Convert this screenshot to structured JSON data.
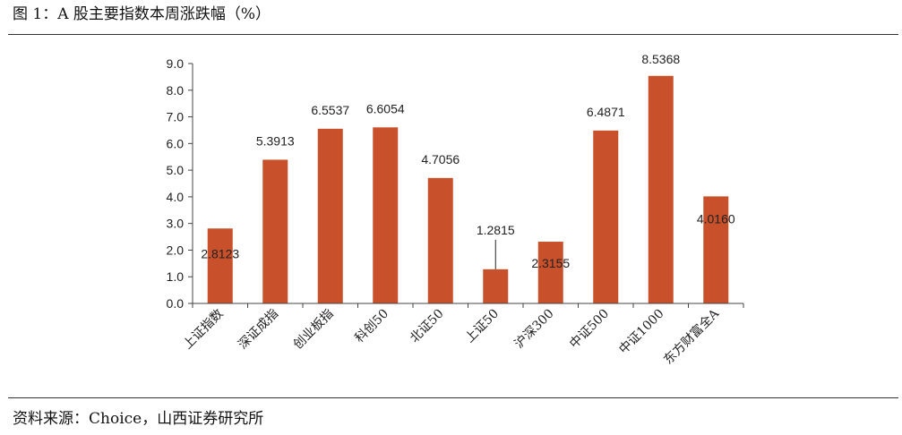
{
  "figure_title": "图 1：A 股主要指数本周涨跌幅（%）",
  "source_note": "资料来源：Choice，山西证券研究所",
  "colors": {
    "bar": "#c8502a",
    "axis": "#444444",
    "rule": "#333333"
  },
  "chart_data": {
    "type": "bar",
    "title": "",
    "xlabel": "",
    "ylabel": "",
    "categories": [
      "上证指数",
      "深证成指",
      "创业板指",
      "科创50",
      "北证50",
      "上证50",
      "沪深300",
      "中证500",
      "中证1000",
      "东方财富全A"
    ],
    "values": [
      2.8123,
      5.3913,
      6.5537,
      6.6054,
      4.7056,
      1.2815,
      2.3155,
      6.4871,
      8.5368,
      4.016
    ],
    "value_labels": [
      "2.8123",
      "5.3913",
      "6.5537",
      "6.6054",
      "4.7056",
      "1.2815",
      "2.3155",
      "6.4871",
      "8.5368",
      "4.0160"
    ],
    "ylim": [
      0,
      9
    ],
    "yticks": [
      "0.0",
      "1.0",
      "2.0",
      "3.0",
      "4.0",
      "5.0",
      "6.0",
      "7.0",
      "8.0",
      "9.0"
    ],
    "grid": false,
    "legend": "none"
  }
}
